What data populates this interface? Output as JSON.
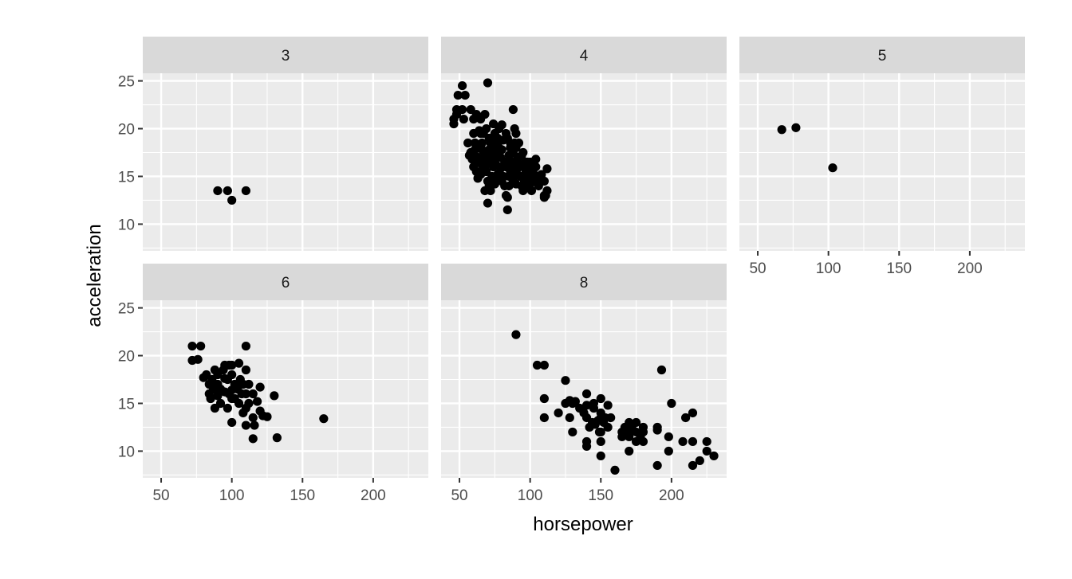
{
  "chart_data": {
    "type": "scatter",
    "facet_by": "cylinders",
    "xlabel": "horsepower",
    "ylabel": "acceleration",
    "xlim": [
      37,
      239
    ],
    "ylim": [
      7.2,
      25.8
    ],
    "x_ticks": [
      50,
      100,
      150,
      200
    ],
    "y_ticks": [
      10,
      15,
      20,
      25
    ],
    "x_tick_labels": [
      "50",
      "100",
      "150",
      "200"
    ],
    "y_tick_labels": [
      "10",
      "15",
      "20",
      "25"
    ],
    "grid": true,
    "point_color": "#000000",
    "panel_background": "#EBEBEB",
    "strip_background": "#D9D9D9",
    "panels": [
      {
        "label": "3",
        "points": [
          [
            90,
            13.5
          ],
          [
            97,
            13.5
          ],
          [
            100,
            12.5
          ],
          [
            110,
            13.5
          ]
        ]
      },
      {
        "label": "4",
        "points": [
          [
            46,
            20.5
          ],
          [
            46,
            21
          ],
          [
            48,
            21.5
          ],
          [
            48,
            22
          ],
          [
            49,
            23.5
          ],
          [
            52,
            24.5
          ],
          [
            52,
            22
          ],
          [
            53,
            21
          ],
          [
            54,
            23.5
          ],
          [
            58,
            22
          ],
          [
            60,
            21
          ],
          [
            61,
            18.5
          ],
          [
            62,
            21.5
          ],
          [
            65,
            19.5
          ],
          [
            65,
            21
          ],
          [
            67,
            19.5
          ],
          [
            68,
            21.5
          ],
          [
            69,
            20
          ],
          [
            70,
            24.8
          ],
          [
            71,
            19
          ],
          [
            72,
            18.5
          ],
          [
            74,
            20.5
          ],
          [
            75,
            19.5
          ],
          [
            78,
            20
          ],
          [
            80,
            20.4
          ],
          [
            83,
            19.5
          ],
          [
            84,
            19
          ],
          [
            86,
            18.5
          ],
          [
            88,
            22
          ],
          [
            89,
            20
          ],
          [
            90,
            19.5
          ],
          [
            92,
            18.5
          ],
          [
            95,
            17.5
          ],
          [
            97,
            16.5
          ],
          [
            100,
            16.5
          ],
          [
            102,
            15.5
          ],
          [
            104,
            16
          ],
          [
            105,
            15
          ],
          [
            107,
            14.8
          ],
          [
            108,
            14.5
          ],
          [
            110,
            14.5
          ],
          [
            110,
            13
          ],
          [
            112,
            13.5
          ],
          [
            112,
            15.8
          ],
          [
            84,
            11.5
          ],
          [
            70,
            12.2
          ],
          [
            68,
            13.5
          ],
          [
            75,
            14.2
          ],
          [
            80,
            14.5
          ],
          [
            85,
            15
          ],
          [
            88,
            16
          ],
          [
            90,
            16.5
          ],
          [
            92,
            17
          ],
          [
            95,
            15
          ],
          [
            98,
            14
          ],
          [
            76,
            17
          ],
          [
            72,
            16.5
          ],
          [
            64,
            16.5
          ],
          [
            58,
            17.5
          ],
          [
            60,
            19.5
          ],
          [
            64,
            19.8
          ],
          [
            66,
            18.5
          ],
          [
            67,
            17
          ],
          [
            68,
            16
          ],
          [
            69,
            15.5
          ],
          [
            70,
            14.5
          ],
          [
            71,
            14
          ],
          [
            72,
            13.5
          ],
          [
            73,
            15
          ],
          [
            74,
            16
          ],
          [
            75,
            17.5
          ],
          [
            76,
            18.5
          ],
          [
            77,
            19
          ],
          [
            78,
            18
          ],
          [
            79,
            17
          ],
          [
            80,
            16
          ],
          [
            81,
            15
          ],
          [
            82,
            14
          ],
          [
            83,
            13
          ],
          [
            84,
            12.8
          ],
          [
            85,
            14
          ],
          [
            86,
            15.5
          ],
          [
            87,
            16.5
          ],
          [
            88,
            17.5
          ],
          [
            89,
            18.5
          ],
          [
            90,
            18
          ],
          [
            91,
            17
          ],
          [
            92,
            16
          ],
          [
            93,
            15
          ],
          [
            94,
            14
          ],
          [
            95,
            13.5
          ],
          [
            96,
            14.5
          ],
          [
            97,
            15.5
          ],
          [
            98,
            16.5
          ],
          [
            99,
            15
          ],
          [
            100,
            14.2
          ],
          [
            101,
            13.5
          ],
          [
            102,
            14.5
          ],
          [
            103,
            15
          ],
          [
            104,
            16.8
          ],
          [
            62,
            15.5
          ],
          [
            63,
            14.8
          ],
          [
            65,
            15.2
          ],
          [
            66,
            16.2
          ],
          [
            67,
            15.8
          ],
          [
            69,
            17.5
          ],
          [
            70,
            16.8
          ],
          [
            71,
            17.8
          ],
          [
            73,
            17.2
          ],
          [
            74,
            18.2
          ],
          [
            76,
            16.2
          ],
          [
            77,
            15.2
          ],
          [
            78,
            14.8
          ],
          [
            79,
            15.8
          ],
          [
            80,
            17.8
          ],
          [
            81,
            18.8
          ],
          [
            82,
            16.5
          ],
          [
            83,
            16
          ],
          [
            85,
            17.2
          ],
          [
            86,
            18
          ],
          [
            87,
            15.2
          ],
          [
            88,
            14.5
          ],
          [
            89,
            15.2
          ],
          [
            90,
            14.2
          ],
          [
            91,
            15.8
          ],
          [
            93,
            16.2
          ],
          [
            94,
            17.2
          ],
          [
            96,
            16
          ],
          [
            98,
            15.2
          ],
          [
            100,
            15.8
          ],
          [
            106,
            14
          ],
          [
            108,
            15.2
          ],
          [
            110,
            12.8
          ],
          [
            111,
            13
          ],
          [
            56,
            18.5
          ],
          [
            57,
            17.2
          ],
          [
            59,
            16.8
          ],
          [
            60,
            16
          ],
          [
            61,
            17.8
          ],
          [
            63,
            17
          ],
          [
            64,
            18
          ],
          [
            66,
            17.8
          ]
        ]
      },
      {
        "label": "5",
        "points": [
          [
            67,
            19.9
          ],
          [
            77,
            20.1
          ],
          [
            103,
            15.9
          ]
        ]
      },
      {
        "label": "6",
        "points": [
          [
            72,
            21
          ],
          [
            72,
            19.5
          ],
          [
            76,
            19.6
          ],
          [
            78,
            21
          ],
          [
            80,
            17.7
          ],
          [
            82,
            18
          ],
          [
            84,
            17
          ],
          [
            84,
            16
          ],
          [
            85,
            15.5
          ],
          [
            86,
            17.5
          ],
          [
            87,
            16.5
          ],
          [
            88,
            18.5
          ],
          [
            88,
            14.5
          ],
          [
            90,
            17
          ],
          [
            90,
            15.8
          ],
          [
            90,
            18
          ],
          [
            92,
            16.5
          ],
          [
            92,
            15
          ],
          [
            94,
            18.5
          ],
          [
            95,
            17.6
          ],
          [
            95,
            16.2
          ],
          [
            95,
            19
          ],
          [
            97,
            17.5
          ],
          [
            97,
            14.5
          ],
          [
            98,
            16
          ],
          [
            98,
            19
          ],
          [
            100,
            18
          ],
          [
            100,
            16.4
          ],
          [
            100,
            15.5
          ],
          [
            100,
            13
          ],
          [
            100,
            19
          ],
          [
            102,
            17
          ],
          [
            102,
            15.5
          ],
          [
            104,
            16.5
          ],
          [
            105,
            15
          ],
          [
            105,
            19.2
          ],
          [
            106,
            17.5
          ],
          [
            107,
            16
          ],
          [
            108,
            14
          ],
          [
            108,
            17
          ],
          [
            110,
            21
          ],
          [
            110,
            18.5
          ],
          [
            110,
            16
          ],
          [
            110,
            14.5
          ],
          [
            110,
            12.7
          ],
          [
            112,
            17
          ],
          [
            112,
            15
          ],
          [
            115,
            16
          ],
          [
            115,
            13.5
          ],
          [
            115,
            11.3
          ],
          [
            116,
            12.7
          ],
          [
            118,
            15.2
          ],
          [
            120,
            16.7
          ],
          [
            120,
            14.2
          ],
          [
            122,
            13.7
          ],
          [
            125,
            13.6
          ],
          [
            130,
            15.8
          ],
          [
            132,
            11.4
          ],
          [
            165,
            13.4
          ]
        ]
      },
      {
        "label": "8",
        "points": [
          [
            90,
            22.2
          ],
          [
            105,
            19
          ],
          [
            110,
            19
          ],
          [
            110,
            15.5
          ],
          [
            110,
            13.5
          ],
          [
            120,
            14
          ],
          [
            125,
            17.4
          ],
          [
            125,
            15
          ],
          [
            128,
            15.3
          ],
          [
            128,
            13.5
          ],
          [
            130,
            12
          ],
          [
            130,
            15
          ],
          [
            132,
            15.2
          ],
          [
            135,
            14.5
          ],
          [
            138,
            14
          ],
          [
            140,
            13.5
          ],
          [
            140,
            14.8
          ],
          [
            140,
            11
          ],
          [
            140,
            10.5
          ],
          [
            140,
            16
          ],
          [
            142,
            12.5
          ],
          [
            144,
            13
          ],
          [
            145,
            15
          ],
          [
            145,
            14.5
          ],
          [
            146,
            12.8
          ],
          [
            148,
            13.2
          ],
          [
            149,
            12
          ],
          [
            150,
            13.5
          ],
          [
            150,
            12
          ],
          [
            150,
            11
          ],
          [
            150,
            14
          ],
          [
            150,
            15.5
          ],
          [
            150,
            9.5
          ],
          [
            152,
            13
          ],
          [
            153,
            13.5
          ],
          [
            155,
            14.8
          ],
          [
            155,
            12.5
          ],
          [
            157,
            13.5
          ],
          [
            160,
            8
          ],
          [
            165,
            12
          ],
          [
            165,
            11.5
          ],
          [
            167,
            12.5
          ],
          [
            170,
            13
          ],
          [
            170,
            11.5
          ],
          [
            170,
            10
          ],
          [
            170,
            12
          ],
          [
            172,
            12.5
          ],
          [
            175,
            11
          ],
          [
            175,
            12
          ],
          [
            175,
            13
          ],
          [
            178,
            11.5
          ],
          [
            180,
            12.5
          ],
          [
            180,
            11
          ],
          [
            180,
            12
          ],
          [
            190,
            12.2
          ],
          [
            190,
            12.5
          ],
          [
            190,
            8.5
          ],
          [
            193,
            18.5
          ],
          [
            198,
            11.5
          ],
          [
            198,
            10
          ],
          [
            200,
            15
          ],
          [
            208,
            11
          ],
          [
            210,
            13.5
          ],
          [
            215,
            14
          ],
          [
            215,
            11
          ],
          [
            215,
            8.5
          ],
          [
            220,
            9
          ],
          [
            225,
            10
          ],
          [
            225,
            11
          ],
          [
            230,
            9.5
          ]
        ]
      }
    ]
  }
}
